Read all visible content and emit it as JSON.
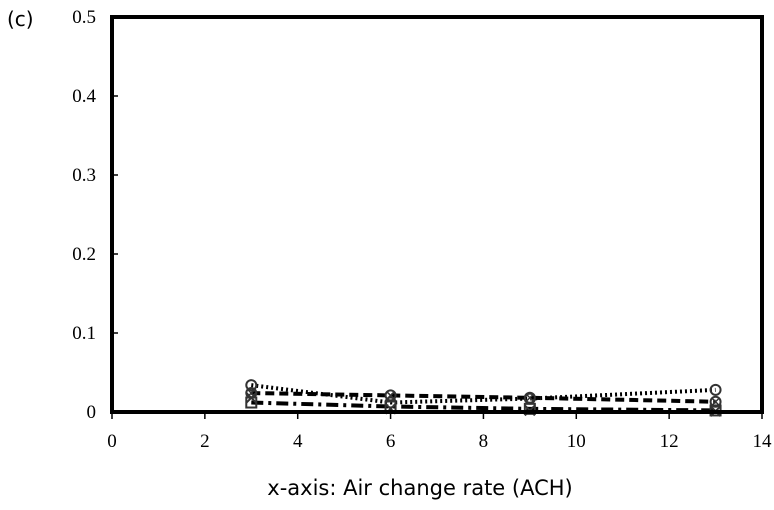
{
  "chart_data": {
    "type": "scatter",
    "panel_label": "(c)",
    "title": "",
    "xlabel": "x-axis: Air change rate (ACH)",
    "ylabel": "",
    "xlim": [
      0,
      14
    ],
    "ylim": [
      0,
      0.5
    ],
    "x_ticks": [
      "0",
      "2",
      "4",
      "6",
      "8",
      "10",
      "12",
      "14"
    ],
    "y_ticks": [
      "0",
      "0.1",
      "0.2",
      "0.3",
      "0.4",
      "0.5"
    ],
    "grid": false,
    "legend": "none",
    "series": [
      {
        "marker": "circle",
        "line": "dotted",
        "x": [
          3,
          6,
          9,
          13
        ],
        "y": [
          0.034,
          0.012,
          0.017,
          0.028
        ]
      },
      {
        "marker": "circle-x",
        "line": "dashed",
        "x": [
          3,
          6,
          9,
          13
        ],
        "y": [
          0.024,
          0.021,
          0.018,
          0.013
        ]
      },
      {
        "marker": "square",
        "line": "dash-dot",
        "x": [
          3,
          6,
          9,
          13
        ],
        "y": [
          0.012,
          0.007,
          0.004,
          0.002
        ]
      },
      {
        "marker": "x",
        "line": "none",
        "x": [
          3,
          6,
          9,
          13
        ],
        "y": [
          0.018,
          0.004,
          0.002,
          0.001
        ]
      }
    ]
  }
}
